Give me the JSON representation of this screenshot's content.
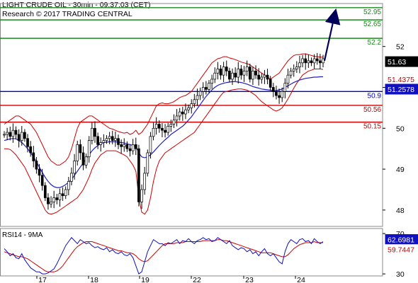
{
  "header": {
    "line1": "LIGHT CRUDE OIL - 30min - 09:37:03 (CET)",
    "line2": "Research © 2017 TRADING CENTRAL"
  },
  "chart_data": [
    {
      "type": "candlestick",
      "ylim": [
        47.6,
        53.05
      ],
      "y_ticks": [
        48,
        49,
        50,
        51,
        52
      ],
      "x_ticks": [
        "17",
        "18",
        "19",
        "22",
        "23",
        "24"
      ],
      "levels": [
        {
          "value": 52.95,
          "label": "52.95",
          "color": "#1a8a1a"
        },
        {
          "value": 52.65,
          "label": "52.65",
          "color": "#1a8a1a"
        },
        {
          "value": 52.2,
          "label": "52.2",
          "color": "#1a8a1a"
        },
        {
          "value": 50.9,
          "label": "50.9",
          "color": "#0000cc"
        },
        {
          "value": 50.56,
          "label": "50.56",
          "color": "#cc0000"
        },
        {
          "value": 50.15,
          "label": "50.15",
          "color": "#cc0000"
        }
      ],
      "price_badges": [
        {
          "value": 51.63,
          "label": "51.63",
          "bg": "#000000",
          "fg": "#ffffff"
        },
        {
          "value": 51.4375,
          "label": "51.4375",
          "bg": "#ffffff",
          "fg": "#cc0000"
        },
        {
          "value": 51.2578,
          "label": "51.2578",
          "bg": "#1010c0",
          "fg": "#ffffff"
        }
      ],
      "forecast_arrow": {
        "from": 51.65,
        "to": 52.85,
        "color": "#00005a"
      },
      "close": [
        49.85,
        49.9,
        49.8,
        49.95,
        49.85,
        49.7,
        49.9,
        49.75,
        49.55,
        49.4,
        49.2,
        49.0,
        48.85,
        48.6,
        48.3,
        48.15,
        48.2,
        48.3,
        48.25,
        48.4,
        48.35,
        48.5,
        48.7,
        48.9,
        49.2,
        49.6,
        49.4,
        49.1,
        49.3,
        49.7,
        50.0,
        49.8,
        49.6,
        49.65,
        49.7,
        49.75,
        49.8,
        49.7,
        49.75,
        49.6,
        49.55,
        49.6,
        49.5,
        49.45,
        49.6,
        49.5,
        48.2,
        48.5,
        48.9,
        49.4,
        49.8,
        50.0,
        50.1,
        50.0,
        49.95,
        49.9,
        50.05,
        50.1,
        50.2,
        50.3,
        50.4,
        50.35,
        50.45,
        50.5,
        50.6,
        50.7,
        50.8,
        50.9,
        51.0,
        50.95,
        51.1,
        51.2,
        51.35,
        51.45,
        51.3,
        51.5,
        51.4,
        51.2,
        51.35,
        51.25,
        51.45,
        51.3,
        51.4,
        51.5,
        51.2,
        51.4,
        51.3,
        51.2,
        51.25,
        51.3,
        51.2,
        51.0,
        50.9,
        50.8,
        50.75,
        50.9,
        51.1,
        51.3,
        51.4,
        51.45,
        51.5,
        51.6,
        51.7,
        51.6,
        51.65,
        51.6,
        51.7,
        51.65,
        51.6,
        51.7
      ],
      "upper_band": [
        50.1,
        50.15,
        50.2,
        50.25,
        50.3,
        50.3,
        50.25,
        50.2,
        50.15,
        50.1,
        50.0,
        49.9,
        49.75,
        49.6,
        49.45,
        49.3,
        49.2,
        49.15,
        49.1,
        49.1,
        49.15,
        49.2,
        49.3,
        49.5,
        49.75,
        50.0,
        50.15,
        50.2,
        50.25,
        50.3,
        50.3,
        50.25,
        50.2,
        50.15,
        50.1,
        50.05,
        50.0,
        49.98,
        49.95,
        49.92,
        49.9,
        49.88,
        49.9,
        49.85,
        49.88,
        49.95,
        49.85,
        49.9,
        50.0,
        50.1,
        50.25,
        50.4,
        50.55,
        50.6,
        50.62,
        50.6,
        50.6,
        50.62,
        50.65,
        50.7,
        50.75,
        50.78,
        50.8,
        50.85,
        50.9,
        51.0,
        51.1,
        51.2,
        51.3,
        51.4,
        51.5,
        51.6,
        51.65,
        51.7,
        51.72,
        51.75,
        51.75,
        51.72,
        51.7,
        51.68,
        51.65,
        51.62,
        51.6,
        51.58,
        51.55,
        51.5,
        51.45,
        51.4,
        51.35,
        51.3,
        51.25,
        51.2,
        51.25,
        51.3,
        51.35,
        51.45,
        51.55,
        51.65,
        51.72,
        51.78,
        51.8,
        51.8,
        51.82,
        51.82,
        51.8,
        51.78,
        51.76,
        51.75,
        51.74,
        51.74
      ],
      "lower_band": [
        49.5,
        49.5,
        49.48,
        49.42,
        49.35,
        49.25,
        49.15,
        49.05,
        48.9,
        48.75,
        48.6,
        48.45,
        48.3,
        48.15,
        48.0,
        47.92,
        47.9,
        47.92,
        47.95,
        48.0,
        48.05,
        48.1,
        48.15,
        48.2,
        48.25,
        48.3,
        48.4,
        48.5,
        48.65,
        48.8,
        49.0,
        49.15,
        49.25,
        49.35,
        49.4,
        49.45,
        49.45,
        49.45,
        49.45,
        49.42,
        49.38,
        49.35,
        49.3,
        49.2,
        49.1,
        48.95,
        48.3,
        47.95,
        47.9,
        48.0,
        48.3,
        48.7,
        49.0,
        49.2,
        49.3,
        49.4,
        49.45,
        49.5,
        49.55,
        49.6,
        49.65,
        49.7,
        49.75,
        49.8,
        49.85,
        49.9,
        50.0,
        50.1,
        50.2,
        50.3,
        50.4,
        50.5,
        50.6,
        50.7,
        50.8,
        50.88,
        50.9,
        50.92,
        50.94,
        50.95,
        50.96,
        50.96,
        50.95,
        50.93,
        50.9,
        50.85,
        50.8,
        50.72,
        50.65,
        50.6,
        50.55,
        50.5,
        50.45,
        50.42,
        50.45,
        50.5,
        50.6,
        50.72,
        50.85,
        50.98,
        51.1,
        51.2,
        51.3,
        51.35,
        51.4,
        51.42,
        51.45,
        51.45,
        51.45,
        51.44
      ],
      "ma_blue": [
        49.7,
        49.72,
        49.74,
        49.75,
        49.74,
        49.7,
        49.65,
        49.58,
        49.5,
        49.4,
        49.3,
        49.18,
        49.05,
        48.92,
        48.8,
        48.7,
        48.62,
        48.57,
        48.55,
        48.55,
        48.58,
        48.62,
        48.68,
        48.75,
        48.85,
        48.95,
        49.05,
        49.15,
        49.25,
        49.35,
        49.45,
        49.52,
        49.58,
        49.62,
        49.65,
        49.66,
        49.67,
        49.67,
        49.67,
        49.66,
        49.65,
        49.64,
        49.62,
        49.6,
        49.58,
        49.55,
        49.4,
        49.3,
        49.28,
        49.3,
        49.35,
        49.42,
        49.5,
        49.58,
        49.65,
        49.72,
        49.78,
        49.85,
        49.9,
        49.95,
        50.0,
        50.05,
        50.12,
        50.2,
        50.28,
        50.38,
        50.48,
        50.58,
        50.68,
        50.78,
        50.86,
        50.94,
        51.0,
        51.05,
        51.08,
        51.1,
        51.12,
        51.13,
        51.14,
        51.14,
        51.13,
        51.12,
        51.1,
        51.08,
        51.05,
        51.02,
        51.0,
        50.98,
        50.96,
        50.95,
        50.94,
        50.93,
        50.92,
        50.92,
        50.94,
        50.96,
        51.0,
        51.04,
        51.08,
        51.12,
        51.15,
        51.18,
        51.2,
        51.22,
        51.23,
        51.24,
        51.25,
        51.25,
        51.26,
        51.26
      ]
    },
    {
      "type": "line",
      "title": "RSI14 - 9MA",
      "ylim": [
        28,
        75
      ],
      "y_ticks": [
        30,
        70
      ],
      "price_badges": [
        {
          "value": 62.6981,
          "label": "62.6981",
          "bg": "#1010c0",
          "fg": "#ffffff"
        },
        {
          "value": 59.7447,
          "label": "59.7447",
          "bg": "#ffffff",
          "fg": "#cc0000"
        }
      ],
      "rsi": [
        55,
        52,
        48,
        50,
        46,
        45,
        50,
        44,
        40,
        36,
        34,
        32,
        32,
        30,
        30,
        31,
        33,
        35,
        40,
        46,
        52,
        58,
        62,
        66,
        63,
        60,
        64,
        62,
        60,
        61,
        58,
        56,
        57,
        55,
        54,
        56,
        52,
        54,
        51,
        50,
        52,
        49,
        48,
        50,
        46,
        38,
        30,
        32,
        42,
        52,
        58,
        64,
        62,
        60,
        60,
        58,
        61,
        60,
        62,
        64,
        60,
        63,
        62,
        65,
        62,
        60,
        63,
        64,
        66,
        64,
        65,
        62,
        63,
        66,
        64,
        62,
        60,
        63,
        58,
        56,
        54,
        56,
        55,
        52,
        54,
        50,
        52,
        48,
        52,
        55,
        50,
        48,
        50,
        46,
        42,
        40,
        52,
        60,
        64,
        62,
        60,
        64,
        65,
        62,
        63,
        60,
        65,
        62,
        60,
        62
      ],
      "ma": [
        52,
        51,
        50,
        49,
        48,
        47,
        47,
        46,
        45,
        43,
        41,
        39,
        37,
        35,
        33,
        32,
        32,
        32,
        33,
        35,
        38,
        42,
        46,
        50,
        54,
        57,
        59,
        61,
        62,
        62,
        62,
        61,
        60,
        59,
        58,
        57,
        56,
        55,
        54,
        53,
        53,
        52,
        51,
        51,
        50,
        48,
        45,
        43,
        42,
        43,
        46,
        49,
        52,
        55,
        58,
        60,
        60,
        60,
        60,
        61,
        61,
        61,
        62,
        62,
        62,
        62,
        62,
        62,
        63,
        63,
        63,
        63,
        63,
        64,
        64,
        63,
        63,
        62,
        61,
        60,
        59,
        58,
        57,
        56,
        55,
        54,
        53,
        52,
        51,
        51,
        51,
        51,
        50,
        49,
        48,
        47,
        47,
        49,
        52,
        55,
        57,
        59,
        60,
        61,
        61,
        61,
        62,
        61,
        61,
        61
      ],
      "threshold_band": [
        30,
        70
      ]
    }
  ]
}
